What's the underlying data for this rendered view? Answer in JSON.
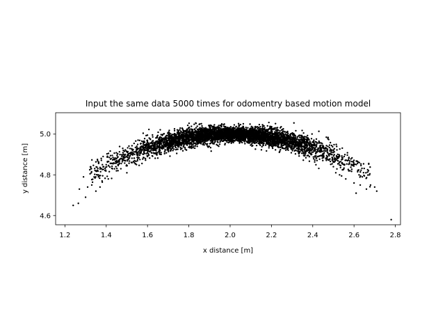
{
  "chart_data": {
    "type": "scatter",
    "title": "Input the same data 5000 times for odomentry based motion model",
    "xlabel": "x distance [m]",
    "ylabel": "y distance [m]",
    "xlim": [
      1.155,
      2.825
    ],
    "ylim": [
      4.555,
      5.105
    ],
    "xticks": [
      "1.2",
      "1.4",
      "1.6",
      "1.8",
      "2.0",
      "2.2",
      "2.4",
      "2.6",
      "2.8"
    ],
    "yticks": [
      "4.6",
      "4.8",
      "5.0"
    ],
    "grid": false,
    "point_color": "#000000",
    "series": [
      {
        "num_points": 5000,
        "distribution": "arc-shaped cloud centered at x=2.0, y=5.0; y falls off quadratically with |x-2.0|, spread widening at the tails",
        "points": [
          [
            1.24,
            4.65
          ],
          [
            1.265,
            4.66
          ],
          [
            1.27,
            4.73
          ],
          [
            1.29,
            4.79
          ],
          [
            1.3,
            4.69
          ],
          [
            1.31,
            4.74
          ],
          [
            1.33,
            4.75
          ],
          [
            1.35,
            4.72
          ],
          [
            1.37,
            4.74
          ],
          [
            1.38,
            4.77
          ],
          [
            1.4,
            4.85
          ],
          [
            1.41,
            4.78
          ],
          [
            1.43,
            4.83
          ],
          [
            1.45,
            4.87
          ],
          [
            1.47,
            4.88
          ],
          [
            1.48,
            4.93
          ],
          [
            1.5,
            4.81
          ],
          [
            1.52,
            4.9
          ],
          [
            2.5,
            4.84
          ],
          [
            2.53,
            4.8
          ],
          [
            2.56,
            4.78
          ],
          [
            2.58,
            4.82
          ],
          [
            2.6,
            4.76
          ],
          [
            2.61,
            4.71
          ],
          [
            2.63,
            4.75
          ],
          [
            2.64,
            4.79
          ],
          [
            2.66,
            4.73
          ],
          [
            2.67,
            4.82
          ],
          [
            2.68,
            4.75
          ],
          [
            2.7,
            4.74
          ],
          [
            2.71,
            4.72
          ],
          [
            2.78,
            4.58
          ]
        ]
      }
    ]
  }
}
